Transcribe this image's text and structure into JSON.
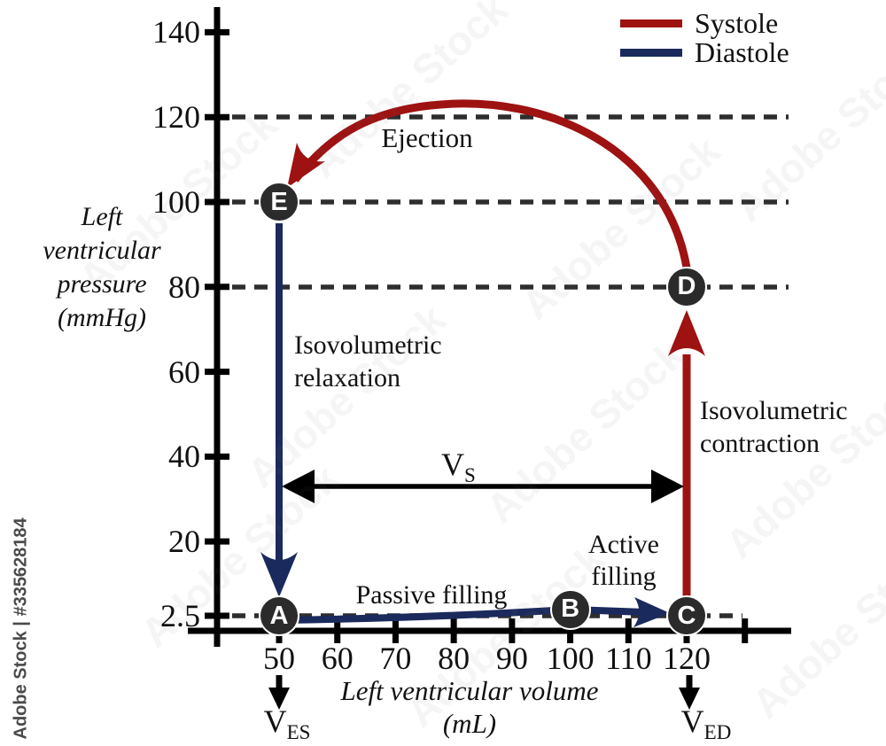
{
  "colors": {
    "systole": "#9e1212",
    "diastole": "#1b2a5c",
    "marker": "#2b2b2b",
    "dash": "#2e2e2e",
    "axis": "#000000",
    "watermark": "#4a4a4a"
  },
  "legend": {
    "items": [
      {
        "label": "Systole",
        "color": "#9e1212"
      },
      {
        "label": "Diastole",
        "color": "#1b2a5c"
      }
    ]
  },
  "y_axis": {
    "title_lines": [
      "Left",
      "ventricular",
      "pressure",
      "(mmHg)"
    ],
    "tick_labels": [
      "140",
      "120",
      "100",
      "80",
      "60",
      "40",
      "20",
      "2.5"
    ],
    "tick_values": [
      140,
      120,
      100,
      80,
      60,
      40,
      20,
      2.5
    ]
  },
  "x_axis": {
    "title": "Left ventricular volume",
    "unit_label": "(mL)",
    "tick_labels": [
      "50",
      "60",
      "70",
      "80",
      "90",
      "100",
      "110",
      "120"
    ],
    "tick_values": [
      50,
      60,
      70,
      80,
      90,
      100,
      110,
      120
    ],
    "unlabeled_tick_value": 130
  },
  "annotations": {
    "ejection": "Ejection",
    "isovolumetric_relaxation_lines": [
      "Isovolumetric",
      "relaxation"
    ],
    "isovolumetric_contraction_lines": [
      "Isovolumetric",
      "contraction"
    ],
    "passive_filling": "Passive filling",
    "active_filling_lines": [
      "Active",
      "filling"
    ],
    "stroke_volume": {
      "base": "V",
      "sub": "S"
    },
    "end_systolic_volume": {
      "base": "V",
      "sub": "ES"
    },
    "end_diastolic_volume": {
      "base": "V",
      "sub": "ED"
    }
  },
  "watermark": {
    "vertical_text": "Adobe Stock | #335628184",
    "tile_text": "Adobe Stock"
  },
  "chart_data": {
    "type": "line",
    "title": "",
    "xlabel": "Left ventricular volume (mL)",
    "ylabel": "Left ventricular pressure (mmHg)",
    "xlim": [
      45,
      133
    ],
    "ylim": [
      0,
      148
    ],
    "x_ticks": [
      50,
      60,
      70,
      80,
      90,
      100,
      110,
      120
    ],
    "y_ticks": [
      2.5,
      20,
      40,
      60,
      80,
      100,
      120,
      140
    ],
    "legend_entries": [
      "Systole",
      "Diastole"
    ],
    "legend_position": "top-right",
    "reference_pressures_dashed": [
      2.5,
      80,
      100,
      120
    ],
    "markers": [
      {
        "label": "A",
        "volume": 50,
        "pressure": 2.5
      },
      {
        "label": "B",
        "volume": 100,
        "pressure": 4
      },
      {
        "label": "C",
        "volume": 120,
        "pressure": 2.5
      },
      {
        "label": "D",
        "volume": 120,
        "pressure": 80
      },
      {
        "label": "E",
        "volume": 50,
        "pressure": 100
      }
    ],
    "series": [
      {
        "name": "Diastole",
        "color": "#1b2a5c",
        "segments": [
          {
            "label": "Isovolumetric relaxation",
            "from": "E",
            "to": "A",
            "path": [
              [
                50,
                100
              ],
              [
                50,
                2.5
              ]
            ]
          },
          {
            "label": "Passive filling",
            "from": "A",
            "to": "B",
            "path": [
              [
                50,
                2.5
              ],
              [
                100,
                4
              ]
            ]
          },
          {
            "label": "Active filling",
            "from": "B",
            "to": "C",
            "path": [
              [
                100,
                4
              ],
              [
                120,
                2.5
              ]
            ]
          }
        ]
      },
      {
        "name": "Systole",
        "color": "#9e1212",
        "segments": [
          {
            "label": "Isovolumetric contraction",
            "from": "C",
            "to": "D",
            "path": [
              [
                120,
                2.5
              ],
              [
                120,
                80
              ]
            ]
          },
          {
            "label": "Ejection",
            "from": "D",
            "to": "E",
            "path": [
              [
                120,
                80
              ],
              [
                76,
                121
              ],
              [
                50,
                100
              ]
            ],
            "peak": {
              "volume": 76,
              "pressure": 121
            }
          }
        ]
      }
    ],
    "stroke_volume_span": {
      "from_volume": 50,
      "to_volume": 120
    },
    "x_axis_markers": [
      {
        "label": "V_ES",
        "volume": 50
      },
      {
        "label": "V_ED",
        "volume": 120
      }
    ]
  }
}
